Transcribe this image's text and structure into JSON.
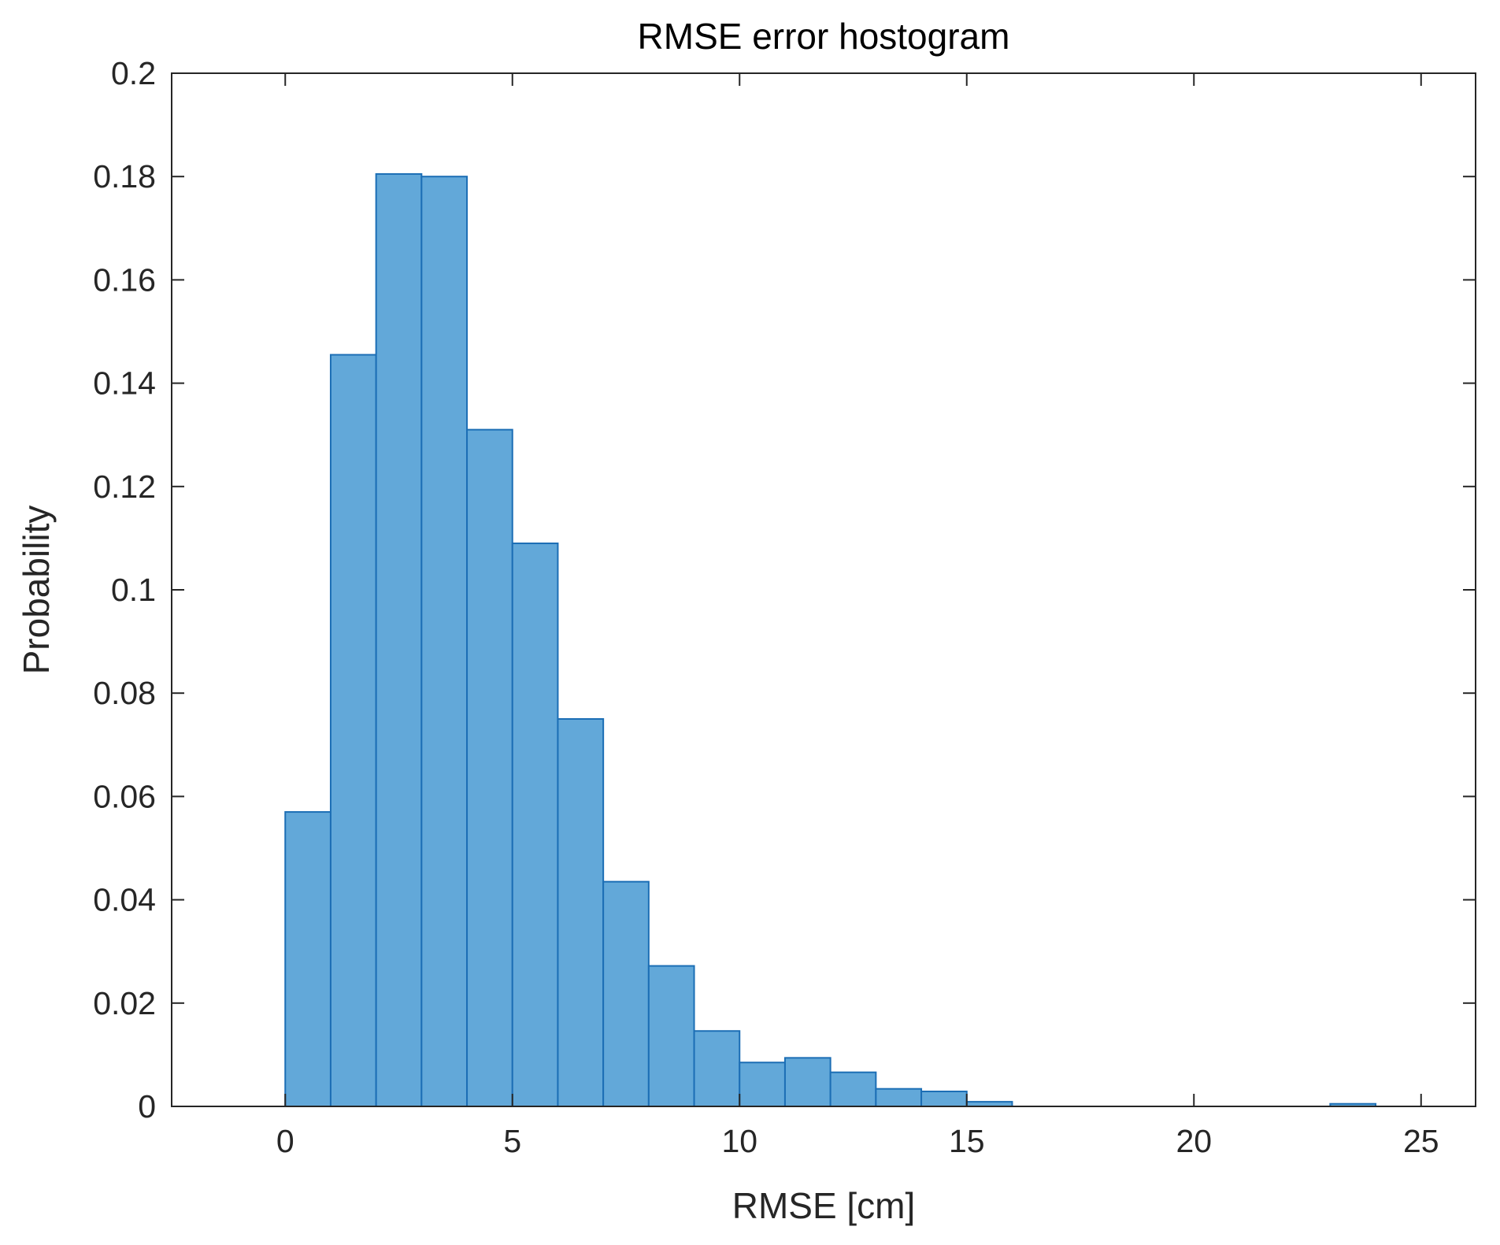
{
  "chart_data": {
    "type": "bar",
    "title": "RMSE error hostogram",
    "xlabel": "RMSE [cm]",
    "ylabel": "Probability",
    "xlim": [
      -2.5,
      26.2
    ],
    "ylim": [
      0,
      0.2
    ],
    "xticks": [
      0,
      5,
      10,
      15,
      20,
      25
    ],
    "xtick_labels": [
      "0",
      "5",
      "10",
      "15",
      "20",
      "25"
    ],
    "yticks": [
      0,
      0.02,
      0.04,
      0.06,
      0.08,
      0.1,
      0.12,
      0.14,
      0.16,
      0.18,
      0.2
    ],
    "ytick_labels": [
      "0",
      "0.02",
      "0.04",
      "0.06",
      "0.08",
      "0.1",
      "0.12",
      "0.14",
      "0.16",
      "0.18",
      "0.2"
    ],
    "grid": false,
    "bin_width": 1,
    "bins": [
      {
        "start": 0,
        "end": 1,
        "value": 0.057
      },
      {
        "start": 1,
        "end": 2,
        "value": 0.1455
      },
      {
        "start": 2,
        "end": 3,
        "value": 0.1805
      },
      {
        "start": 3,
        "end": 4,
        "value": 0.18
      },
      {
        "start": 4,
        "end": 5,
        "value": 0.131
      },
      {
        "start": 5,
        "end": 6,
        "value": 0.109
      },
      {
        "start": 6,
        "end": 7,
        "value": 0.075
      },
      {
        "start": 7,
        "end": 8,
        "value": 0.0435
      },
      {
        "start": 8,
        "end": 9,
        "value": 0.0272
      },
      {
        "start": 9,
        "end": 10,
        "value": 0.0146
      },
      {
        "start": 10,
        "end": 11,
        "value": 0.0085
      },
      {
        "start": 11,
        "end": 12,
        "value": 0.0094
      },
      {
        "start": 12,
        "end": 13,
        "value": 0.0066
      },
      {
        "start": 13,
        "end": 14,
        "value": 0.0034
      },
      {
        "start": 14,
        "end": 15,
        "value": 0.0029
      },
      {
        "start": 15,
        "end": 16,
        "value": 0.0009
      },
      {
        "start": 23,
        "end": 24,
        "value": 0.0005
      }
    ],
    "colors": {
      "bar_fill": "#62A8D9",
      "bar_edge": "#1C6EB5",
      "axes": "#262626"
    }
  }
}
